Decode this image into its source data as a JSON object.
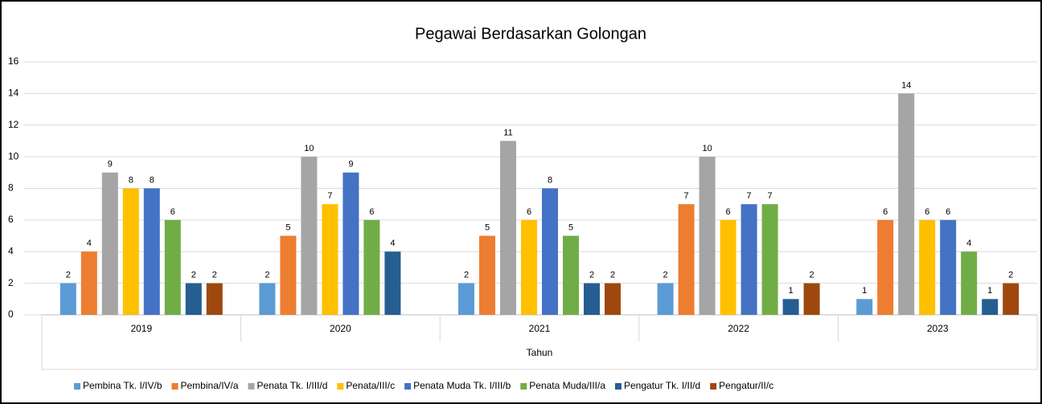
{
  "chart_data": {
    "type": "bar",
    "title": "Pegawai Berdasarkan Golongan",
    "x_label": "Tahun",
    "categories": [
      "2019",
      "2020",
      "2021",
      "2022",
      "2023"
    ],
    "series": [
      {
        "name": "Pembina Tk. I/IV/b",
        "color": "#5b9bd5",
        "values": [
          2,
          2,
          2,
          2,
          1
        ]
      },
      {
        "name": "Pembina/IV/a",
        "color": "#ed7d31",
        "values": [
          4,
          5,
          5,
          7,
          6
        ]
      },
      {
        "name": "Penata Tk. I/III/d",
        "color": "#a5a5a5",
        "values": [
          9,
          10,
          11,
          10,
          14
        ]
      },
      {
        "name": "Penata/III/c",
        "color": "#ffc000",
        "values": [
          8,
          7,
          6,
          6,
          6
        ]
      },
      {
        "name": "Penata Muda Tk. I/III/b",
        "color": "#4472c4",
        "values": [
          8,
          9,
          8,
          7,
          6
        ]
      },
      {
        "name": "Penata Muda/III/a",
        "color": "#70ad47",
        "values": [
          6,
          6,
          5,
          7,
          4
        ]
      },
      {
        "name": "Pengatur Tk. I/II/d",
        "color": "#255e91",
        "values": [
          2,
          4,
          2,
          1,
          1
        ]
      },
      {
        "name": "Pengatur/II/c",
        "color": "#9e480e",
        "values": [
          2,
          null,
          2,
          2,
          2
        ]
      }
    ],
    "ylim": [
      0,
      16
    ],
    "yticks": [
      0,
      2,
      4,
      6,
      8,
      10,
      12,
      14,
      16
    ],
    "grid": true,
    "legend": "bottom"
  }
}
